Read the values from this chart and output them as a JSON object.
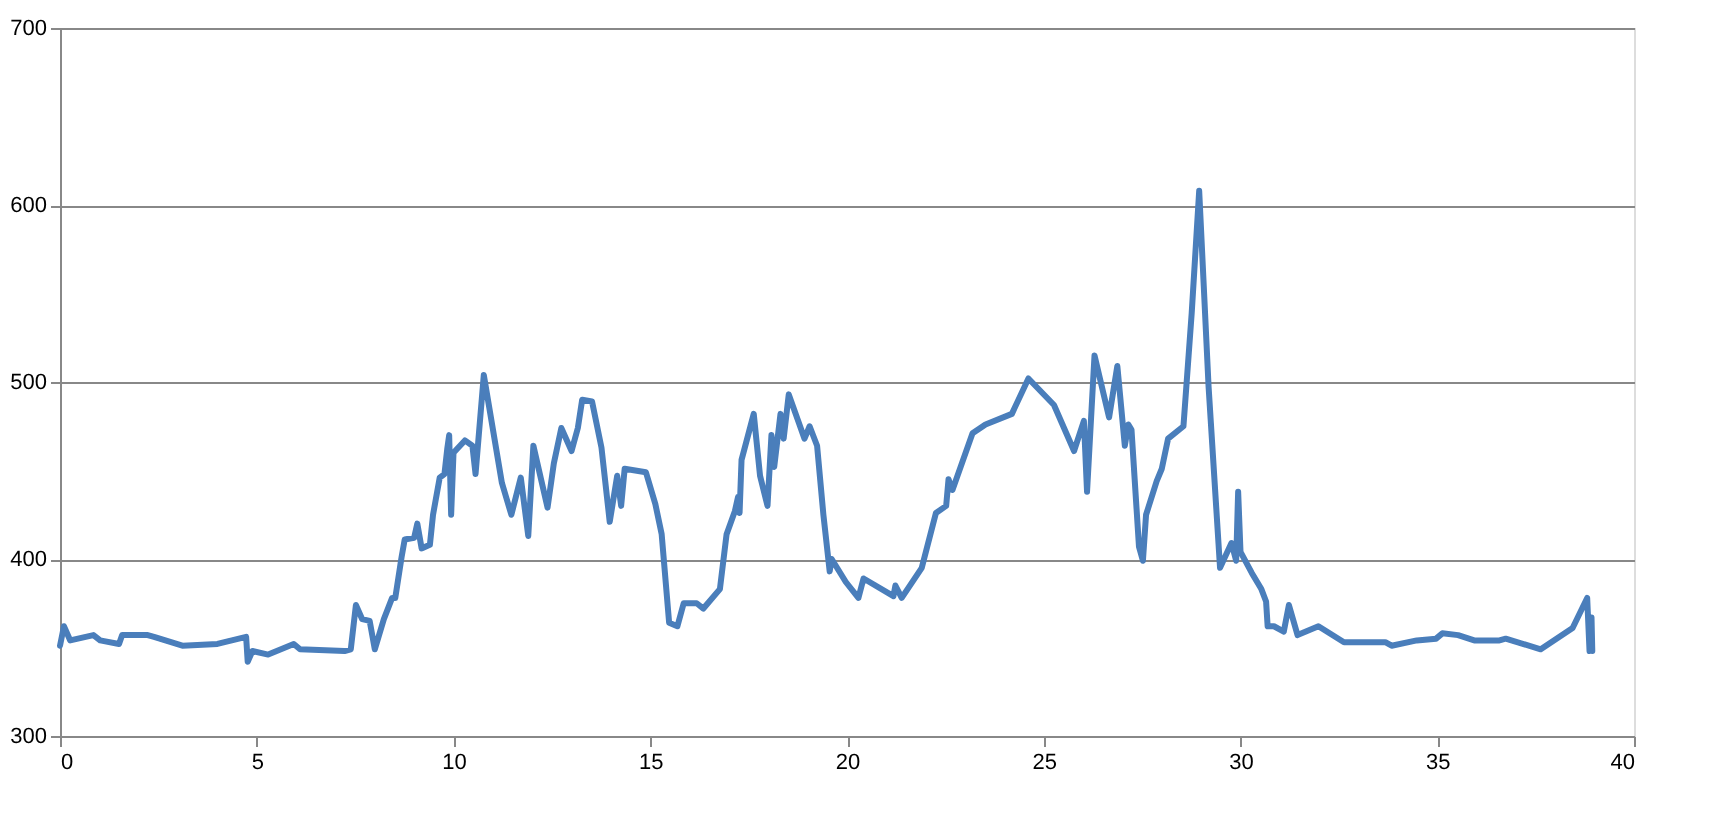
{
  "chart_data": {
    "type": "line",
    "xlim": [
      0,
      40
    ],
    "xticks": [
      0,
      5,
      10,
      15,
      20,
      25,
      30,
      35,
      40
    ],
    "ylim": [
      300,
      700
    ],
    "yticks": [
      300,
      400,
      500,
      600,
      700
    ],
    "grid": "y",
    "marker": "none",
    "line_style": "solid",
    "series": [
      {
        "color": "#4a7ebb",
        "x": [
          0,
          0.1,
          0.26,
          0.85,
          1.02,
          1.5,
          1.58,
          2.23,
          2.39,
          3.11,
          4.0,
          4.73,
          4.77,
          4.89,
          5.29,
          5.94,
          6.1,
          7.23,
          7.39,
          7.52,
          7.68,
          7.87,
          8.0,
          8.23,
          8.44,
          8.52,
          8.68,
          8.76,
          9.0,
          9.08,
          9.19,
          9.4,
          9.48,
          9.65,
          9.77,
          9.84,
          9.89,
          9.94,
          10.0,
          10.29,
          10.48,
          10.56,
          10.77,
          11.23,
          11.47,
          11.71,
          11.9,
          12.03,
          12.39,
          12.55,
          12.74,
          13.0,
          13.16,
          13.27,
          13.52,
          13.76,
          13.97,
          14.16,
          14.26,
          14.35,
          14.89,
          15.13,
          15.29,
          15.48,
          15.69,
          15.85,
          16.18,
          16.35,
          16.77,
          16.94,
          17.15,
          17.23,
          17.27,
          17.32,
          17.63,
          17.79,
          17.98,
          18.08,
          18.15,
          18.31,
          18.39,
          18.52,
          18.76,
          18.92,
          19.05,
          19.24,
          19.4,
          19.56,
          19.61,
          19.97,
          20.29,
          20.42,
          21.18,
          21.23,
          21.39,
          21.9,
          22.26,
          22.52,
          22.58,
          22.68,
          23.19,
          23.52,
          24.19,
          24.61,
          25.26,
          25.77,
          26.02,
          26.1,
          26.29,
          26.66,
          26.87,
          27.06,
          27.15,
          27.23,
          27.42,
          27.52,
          27.6,
          27.87,
          28.0,
          28.16,
          28.55,
          28.76,
          28.95,
          29.19,
          29.48,
          29.77,
          29.89,
          29.94,
          30.0,
          30.29,
          30.53,
          30.65,
          30.69,
          30.85,
          31.1,
          31.23,
          31.45,
          31.98,
          32.63,
          33.68,
          33.84,
          34.48,
          34.97,
          35.13,
          35.53,
          35.94,
          36.58,
          36.74,
          37.63,
          38.44,
          38.81,
          38.87,
          38.92,
          38.94
        ],
        "values": [
          351,
          362,
          354,
          357,
          354,
          352,
          357,
          357,
          356,
          351,
          352,
          356,
          342,
          348,
          346,
          352,
          349,
          348,
          349,
          374,
          366,
          365,
          349,
          366,
          378,
          378,
          401,
          411,
          412,
          420,
          406,
          408,
          425,
          446,
          448,
          462,
          470,
          425,
          460,
          467,
          464,
          448,
          504,
          443,
          425,
          446,
          413,
          464,
          429,
          454,
          474,
          461,
          474,
          490,
          489,
          463,
          421,
          447,
          430,
          451,
          449,
          431,
          414,
          364,
          362,
          375,
          375,
          372,
          383,
          414,
          427,
          435,
          426,
          456,
          482,
          447,
          430,
          470,
          452,
          482,
          468,
          493,
          478,
          468,
          475,
          464,
          425,
          393,
          400,
          387,
          378,
          389,
          379,
          385,
          378,
          395,
          426,
          430,
          445,
          439,
          471,
          476,
          482,
          502,
          487,
          461,
          478,
          438,
          515,
          480,
          509,
          464,
          476,
          473,
          407,
          399,
          425,
          444,
          451,
          468,
          475,
          539,
          608,
          497,
          395,
          409,
          399,
          438,
          404,
          392,
          383,
          376,
          362,
          362,
          359,
          374,
          357,
          362,
          353,
          353,
          351,
          354,
          355,
          358,
          357,
          354,
          354,
          355,
          349,
          361,
          378,
          348,
          367,
          348
        ]
      }
    ]
  }
}
